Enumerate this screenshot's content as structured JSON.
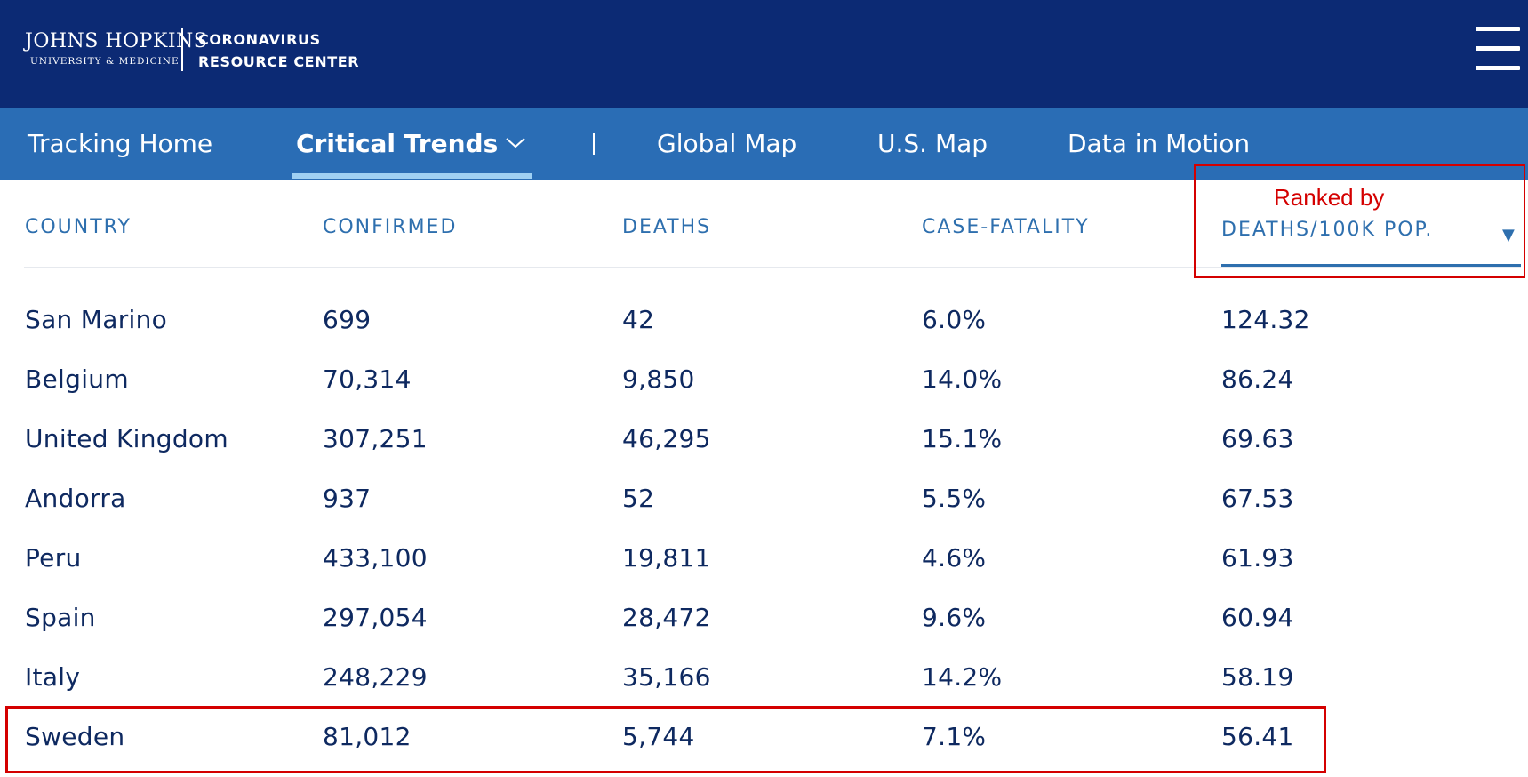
{
  "header": {
    "logo_title": "JOHNS HOPKINS",
    "logo_subtitle": "UNIVERSITY & MEDICINE",
    "site_name_line1": "CORONAVIRUS",
    "site_name_line2": "RESOURCE CENTER",
    "menu_icon": "hamburger-menu-icon"
  },
  "nav": {
    "items": [
      {
        "label": "Tracking Home"
      },
      {
        "label": "Critical Trends"
      },
      {
        "label": "Global Map"
      },
      {
        "label": "U.S. Map"
      },
      {
        "label": "Data in Motion"
      }
    ],
    "active_index": 1
  },
  "table": {
    "columns": [
      "COUNTRY",
      "CONFIRMED",
      "DEATHS",
      "CASE-FATALITY",
      "DEATHS/100K POP."
    ],
    "sort_indicator": "▼",
    "rows": [
      [
        "San Marino",
        "699",
        "42",
        "6.0%",
        "124.32"
      ],
      [
        "Belgium",
        "70,314",
        "9,850",
        "14.0%",
        "86.24"
      ],
      [
        "United Kingdom",
        "307,251",
        "46,295",
        "15.1%",
        "69.63"
      ],
      [
        "Andorra",
        "937",
        "52",
        "5.5%",
        "67.53"
      ],
      [
        "Peru",
        "433,100",
        "19,811",
        "4.6%",
        "61.93"
      ],
      [
        "Spain",
        "297,054",
        "28,472",
        "9.6%",
        "60.94"
      ],
      [
        "Italy",
        "248,229",
        "35,166",
        "14.2%",
        "58.19"
      ],
      [
        "Sweden",
        "81,012",
        "5,744",
        "7.1%",
        "56.41"
      ]
    ]
  },
  "annotation": {
    "label": "Ranked by",
    "color": "#d40000"
  },
  "colors": {
    "topbar": "#0c2a74",
    "navbar": "#2a6db5",
    "header_text": "#2e6fae",
    "cell_text": "#0e2960"
  }
}
